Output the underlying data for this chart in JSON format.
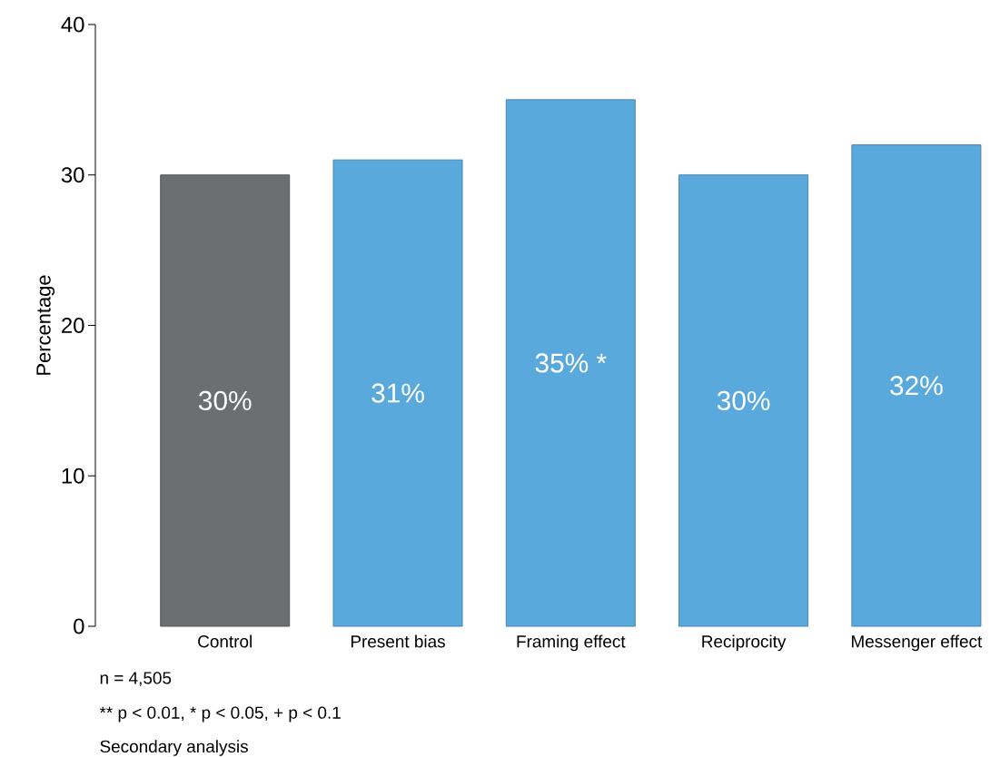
{
  "chart_data": {
    "type": "bar",
    "ylabel": "Percentage",
    "categories": [
      "Control",
      "Present bias",
      "Framing effect",
      "Reciprocity",
      "Messenger effect"
    ],
    "values": [
      30,
      31,
      35,
      30,
      32
    ],
    "colors": [
      "#6d6e71",
      "#5aa9dc",
      "#5aa9dc",
      "#5aa9dc",
      "#5aa9dc"
    ],
    "value_labels": [
      "30%",
      "31%",
      "35% *",
      "30%",
      "32%"
    ],
    "ylim": [
      0,
      40
    ],
    "yticks": [
      0,
      10,
      20,
      30,
      40
    ],
    "annotations": [
      "n = 4,505",
      "** p < 0.01, * p < 0.05, + p < 0.1",
      "Secondary analysis"
    ]
  }
}
